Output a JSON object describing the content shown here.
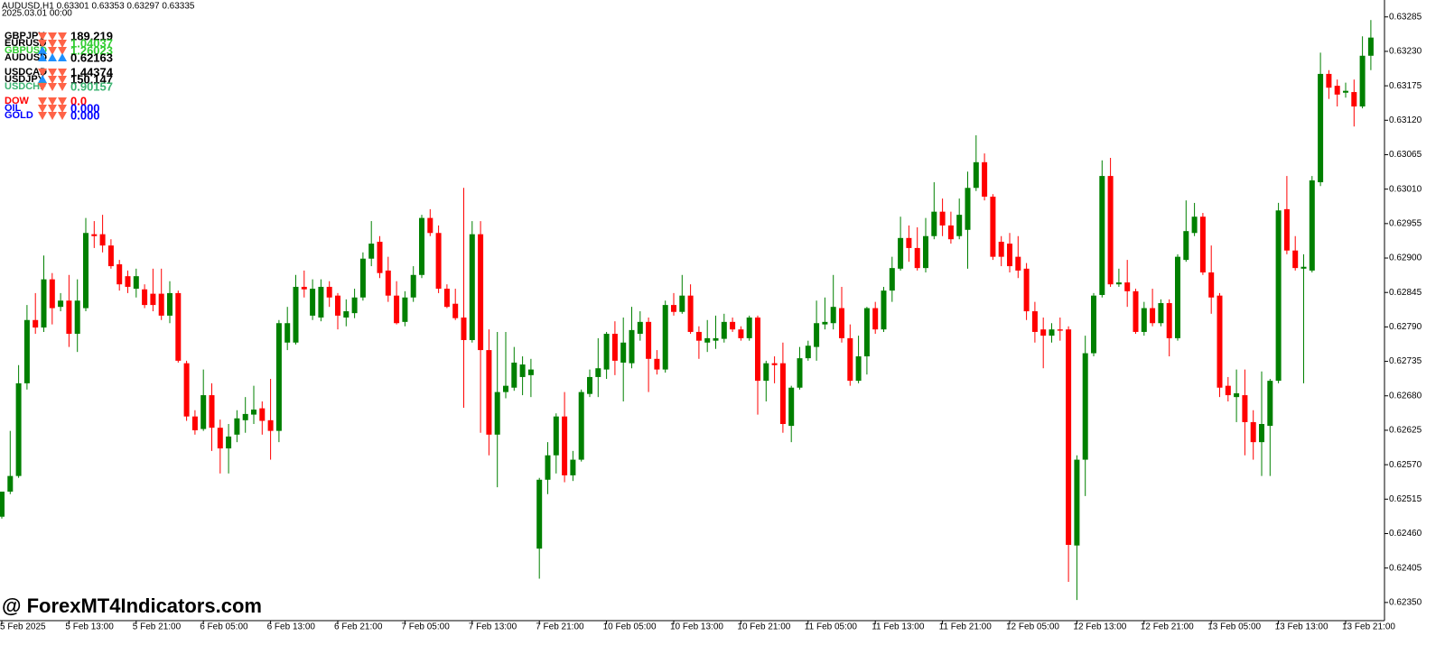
{
  "chart_data": {
    "type": "candlestick",
    "title": "AUDUSD,H1  0.63301 0.63353 0.63297 0.63335",
    "subtitle": "2025.03.01 00:00",
    "watermark": "@ ForexMT4Indicators.com",
    "up_color": "#008000",
    "down_color": "#ff0000",
    "grid": false,
    "ylim": [
      0.62321,
      0.63312
    ],
    "yticks": [
      0.63285,
      {
        "value": 0.6323,
        "label": "0.63230"
      },
      0.63175,
      {
        "value": 0.6312,
        "label": "0.63120"
      },
      0.63065,
      {
        "value": 0.6301,
        "label": "0.63010"
      },
      0.62955,
      {
        "value": 0.629,
        "label": "0.62900"
      },
      0.62845,
      {
        "value": 0.6279,
        "label": "0.62790"
      },
      0.62735,
      {
        "value": 0.6268,
        "label": "0.62680"
      },
      0.62625,
      {
        "value": 0.6257,
        "label": "0.62570"
      },
      0.62515,
      {
        "value": 0.6246,
        "label": "0.62460"
      },
      0.62405,
      {
        "value": 0.6235,
        "label": "0.62350"
      }
    ],
    "xticks": [
      {
        "value": 0,
        "label": "5 Feb 2025"
      },
      {
        "value": 8,
        "label": "5 Feb 13:00"
      },
      {
        "value": 16,
        "label": "5 Feb 21:00"
      },
      {
        "value": 24,
        "label": "6 Feb 05:00"
      },
      {
        "value": 32,
        "label": "6 Feb 13:00"
      },
      {
        "value": 40,
        "label": "6 Feb 21:00"
      },
      {
        "value": 48,
        "label": "7 Feb 05:00"
      },
      {
        "value": 56,
        "label": "7 Feb 13:00"
      },
      {
        "value": 64,
        "label": "7 Feb 21:00"
      },
      {
        "value": 72,
        "label": "10 Feb 05:00"
      },
      {
        "value": 80,
        "label": "10 Feb 13:00"
      },
      {
        "value": 88,
        "label": "10 Feb 21:00"
      },
      {
        "value": 96,
        "label": "11 Feb 05:00"
      },
      {
        "value": 104,
        "label": "11 Feb 13:00"
      },
      {
        "value": 112,
        "label": "11 Feb 21:00"
      },
      {
        "value": 120,
        "label": "12 Feb 05:00"
      },
      {
        "value": 128,
        "label": "12 Feb 13:00"
      },
      {
        "value": 136,
        "label": "12 Feb 21:00"
      },
      {
        "value": 144,
        "label": "13 Feb 05:00"
      },
      {
        "value": 152,
        "label": "13 Feb 13:00"
      },
      {
        "value": 160,
        "label": "13 Feb 21:00"
      }
    ],
    "ohlc": [
      [
        0.62487,
        0.62527,
        0.62484,
        0.62527
      ],
      [
        0.62527,
        0.62624,
        0.62523,
        0.62552
      ],
      [
        0.62552,
        0.62729,
        0.62549,
        0.627
      ],
      [
        0.627,
        0.62825,
        0.6269,
        0.62801
      ],
      [
        0.62801,
        0.62844,
        0.62779,
        0.62789
      ],
      [
        0.62789,
        0.62904,
        0.62782,
        0.62866
      ],
      [
        0.62866,
        0.62876,
        0.62794,
        0.6282
      ],
      [
        0.62822,
        0.62844,
        0.62815,
        0.62832
      ],
      [
        0.62832,
        0.62873,
        0.62758,
        0.62779
      ],
      [
        0.62779,
        0.62866,
        0.6275,
        0.62832
      ],
      [
        0.6282,
        0.62964,
        0.62815,
        0.6294
      ],
      [
        0.62938,
        0.62959,
        0.62916,
        0.62935
      ],
      [
        0.62938,
        0.62969,
        0.62909,
        0.6292
      ],
      [
        0.6292,
        0.6293,
        0.62883,
        0.62887
      ],
      [
        0.6289,
        0.62897,
        0.62848,
        0.62858
      ],
      [
        0.62871,
        0.6288,
        0.62844,
        0.62854
      ],
      [
        0.62851,
        0.62883,
        0.62837,
        0.62871
      ],
      [
        0.6285,
        0.62858,
        0.6282,
        0.62825
      ],
      [
        0.62843,
        0.62883,
        0.62815,
        0.62825
      ],
      [
        0.62843,
        0.62883,
        0.62801,
        0.62808
      ],
      [
        0.62808,
        0.62863,
        0.62796,
        0.62844
      ],
      [
        0.62844,
        0.62848,
        0.62733,
        0.62736
      ],
      [
        0.62732,
        0.62736,
        0.6264,
        0.62647
      ],
      [
        0.62647,
        0.62657,
        0.62618,
        0.62625
      ],
      [
        0.62627,
        0.62722,
        0.62624,
        0.62681
      ],
      [
        0.62681,
        0.627,
        0.62592,
        0.62629
      ],
      [
        0.62629,
        0.62642,
        0.62556,
        0.62596
      ],
      [
        0.62596,
        0.62635,
        0.62556,
        0.62615
      ],
      [
        0.62618,
        0.62657,
        0.62606,
        0.62644
      ],
      [
        0.62641,
        0.62678,
        0.62621,
        0.62651
      ],
      [
        0.6265,
        0.62696,
        0.62635,
        0.62658
      ],
      [
        0.6266,
        0.62671,
        0.62618,
        0.6264
      ],
      [
        0.62641,
        0.62707,
        0.62578,
        0.62624
      ],
      [
        0.62624,
        0.62801,
        0.62606,
        0.62796
      ],
      [
        0.62765,
        0.62822,
        0.62753,
        0.62796
      ],
      [
        0.62765,
        0.62873,
        0.62762,
        0.62854
      ],
      [
        0.62854,
        0.6288,
        0.62837,
        0.6285
      ],
      [
        0.62808,
        0.62866,
        0.62801,
        0.62851
      ],
      [
        0.62805,
        0.62866,
        0.62799,
        0.62854
      ],
      [
        0.62854,
        0.62863,
        0.62822,
        0.62837
      ],
      [
        0.6284,
        0.62844,
        0.62786,
        0.62808
      ],
      [
        0.62805,
        0.62834,
        0.62791,
        0.62815
      ],
      [
        0.62812,
        0.62851,
        0.62804,
        0.62837
      ],
      [
        0.62837,
        0.62909,
        0.62832,
        0.62899
      ],
      [
        0.62899,
        0.62959,
        0.62887,
        0.62923
      ],
      [
        0.62926,
        0.62935,
        0.62868,
        0.62876
      ],
      [
        0.6288,
        0.62902,
        0.6283,
        0.6284
      ],
      [
        0.6284,
        0.62863,
        0.62794,
        0.62796
      ],
      [
        0.62798,
        0.62847,
        0.62791,
        0.62837
      ],
      [
        0.62837,
        0.62887,
        0.6283,
        0.62873
      ],
      [
        0.62873,
        0.62969,
        0.62868,
        0.62964
      ],
      [
        0.62964,
        0.62978,
        0.62935,
        0.6294
      ],
      [
        0.6294,
        0.62952,
        0.62844,
        0.62851
      ],
      [
        0.62851,
        0.62858,
        0.6282,
        0.62822
      ],
      [
        0.62827,
        0.62851,
        0.62801,
        0.62804
      ],
      [
        0.62805,
        0.63012,
        0.62661,
        0.62769
      ],
      [
        0.62769,
        0.62959,
        0.62765,
        0.62938
      ],
      [
        0.62938,
        0.62959,
        0.62621,
        0.62753
      ],
      [
        0.62753,
        0.62786,
        0.62585,
        0.62618
      ],
      [
        0.62618,
        0.62782,
        0.62534,
        0.62686
      ],
      [
        0.62686,
        0.62782,
        0.62676,
        0.62696
      ],
      [
        0.62693,
        0.62758,
        0.62688,
        0.62733
      ],
      [
        0.6271,
        0.62743,
        0.62681,
        0.6273
      ],
      [
        0.62713,
        0.62739,
        0.62678,
        0.62722
      ],
      [
        0.62436,
        0.62549,
        0.62388,
        0.62546
      ],
      [
        0.62546,
        0.62606,
        0.62523,
        0.62585
      ],
      [
        0.62585,
        0.62652,
        0.62556,
        0.62647
      ],
      [
        0.62647,
        0.62686,
        0.62542,
        0.62553
      ],
      [
        0.62553,
        0.62592,
        0.62544,
        0.62578
      ],
      [
        0.62578,
        0.6269,
        0.62575,
        0.62686
      ],
      [
        0.62683,
        0.62722,
        0.62678,
        0.6271
      ],
      [
        0.6271,
        0.62772,
        0.62678,
        0.62724
      ],
      [
        0.62722,
        0.62782,
        0.62707,
        0.62779
      ],
      [
        0.62779,
        0.62799,
        0.62713,
        0.62736
      ],
      [
        0.62733,
        0.62805,
        0.62671,
        0.62765
      ],
      [
        0.62732,
        0.62822,
        0.62724,
        0.62785
      ],
      [
        0.62779,
        0.62815,
        0.62768,
        0.62798
      ],
      [
        0.62798,
        0.62805,
        0.62686,
        0.62739
      ],
      [
        0.62739,
        0.62753,
        0.62714,
        0.62722
      ],
      [
        0.62722,
        0.62832,
        0.62717,
        0.62825
      ],
      [
        0.62825,
        0.62844,
        0.62808,
        0.62814
      ],
      [
        0.62814,
        0.62873,
        0.62811,
        0.6284
      ],
      [
        0.6284,
        0.62858,
        0.62779,
        0.62782
      ],
      [
        0.62782,
        0.62791,
        0.62739,
        0.62768
      ],
      [
        0.62765,
        0.62801,
        0.6275,
        0.62772
      ],
      [
        0.62768,
        0.62808,
        0.62755,
        0.62772
      ],
      [
        0.62771,
        0.62811,
        0.62765,
        0.62798
      ],
      [
        0.62798,
        0.62805,
        0.62782,
        0.62786
      ],
      [
        0.62786,
        0.62791,
        0.62768,
        0.62772
      ],
      [
        0.62772,
        0.62808,
        0.62768,
        0.62805
      ],
      [
        0.62805,
        0.62808,
        0.6265,
        0.62704
      ],
      [
        0.62704,
        0.62736,
        0.62671,
        0.62732
      ],
      [
        0.62732,
        0.62743,
        0.627,
        0.62729
      ],
      [
        0.62732,
        0.62765,
        0.62621,
        0.62635
      ],
      [
        0.62632,
        0.62696,
        0.62606,
        0.62693
      ],
      [
        0.62693,
        0.62758,
        0.6269,
        0.6274
      ],
      [
        0.6274,
        0.62768,
        0.62736,
        0.6276
      ],
      [
        0.62758,
        0.62832,
        0.62736,
        0.62796
      ],
      [
        0.62794,
        0.62837,
        0.62786,
        0.62798
      ],
      [
        0.62796,
        0.62873,
        0.62786,
        0.62822
      ],
      [
        0.6282,
        0.62854,
        0.62765,
        0.62772
      ],
      [
        0.62772,
        0.62794,
        0.62696,
        0.62704
      ],
      [
        0.62704,
        0.62776,
        0.627,
        0.62743
      ],
      [
        0.62743,
        0.62822,
        0.62714,
        0.6282
      ],
      [
        0.6282,
        0.6283,
        0.62779,
        0.62786
      ],
      [
        0.62786,
        0.62854,
        0.62782,
        0.62848
      ],
      [
        0.62848,
        0.62902,
        0.6283,
        0.62884
      ],
      [
        0.62883,
        0.62966,
        0.6288,
        0.62932
      ],
      [
        0.62932,
        0.62952,
        0.62894,
        0.62916
      ],
      [
        0.62916,
        0.62949,
        0.6288,
        0.62884
      ],
      [
        0.62884,
        0.62964,
        0.62877,
        0.62935
      ],
      [
        0.62935,
        0.63021,
        0.6293,
        0.62974
      ],
      [
        0.62974,
        0.62995,
        0.62935,
        0.62952
      ],
      [
        0.62952,
        0.62974,
        0.62923,
        0.6293
      ],
      [
        0.62935,
        0.62995,
        0.6293,
        0.62969
      ],
      [
        0.62945,
        0.63038,
        0.62883,
        0.63012
      ],
      [
        0.63012,
        0.63096,
        0.63007,
        0.63053
      ],
      [
        0.63053,
        0.63067,
        0.62992,
        0.62998
      ],
      [
        0.62998,
        0.63002,
        0.62897,
        0.62902
      ],
      [
        0.62926,
        0.62935,
        0.62887,
        0.62902
      ],
      [
        0.62923,
        0.6294,
        0.62877,
        0.62887
      ],
      [
        0.62902,
        0.62935,
        0.62868,
        0.6288
      ],
      [
        0.62883,
        0.62892,
        0.62801,
        0.62815
      ],
      [
        0.62815,
        0.6283,
        0.62765,
        0.62782
      ],
      [
        0.62786,
        0.62805,
        0.62724,
        0.62776
      ],
      [
        0.62776,
        0.62796,
        0.62765,
        0.62786
      ],
      [
        0.62786,
        0.62805,
        0.62768,
        0.62784
      ],
      [
        0.62786,
        0.62791,
        0.62383,
        0.62442
      ],
      [
        0.62441,
        0.62585,
        0.62354,
        0.62578
      ],
      [
        0.62578,
        0.62776,
        0.6252,
        0.62748
      ],
      [
        0.62748,
        0.62844,
        0.62743,
        0.6284
      ],
      [
        0.62841,
        0.63056,
        0.62837,
        0.63031
      ],
      [
        0.63031,
        0.6306,
        0.62854,
        0.62858
      ],
      [
        0.62858,
        0.62883,
        0.62854,
        0.62861
      ],
      [
        0.62861,
        0.62897,
        0.62822,
        0.62847
      ],
      [
        0.62847,
        0.62851,
        0.62779,
        0.62782
      ],
      [
        0.62782,
        0.6283,
        0.62776,
        0.6282
      ],
      [
        0.6282,
        0.62851,
        0.62791,
        0.62796
      ],
      [
        0.62796,
        0.62834,
        0.62791,
        0.62828
      ],
      [
        0.62828,
        0.62834,
        0.62743,
        0.62772
      ],
      [
        0.62772,
        0.62906,
        0.62768,
        0.62902
      ],
      [
        0.62897,
        0.62992,
        0.62894,
        0.62943
      ],
      [
        0.6294,
        0.62988,
        0.62935,
        0.62966
      ],
      [
        0.62966,
        0.62972,
        0.62873,
        0.62877
      ],
      [
        0.62877,
        0.6292,
        0.62811,
        0.62837
      ],
      [
        0.6284,
        0.62844,
        0.62678,
        0.62693
      ],
      [
        0.62696,
        0.6271,
        0.62671,
        0.62681
      ],
      [
        0.62678,
        0.62722,
        0.62638,
        0.62684
      ],
      [
        0.62681,
        0.62722,
        0.62585,
        0.62638
      ],
      [
        0.62638,
        0.62657,
        0.62578,
        0.62606
      ],
      [
        0.62606,
        0.62719,
        0.62552,
        0.62635
      ],
      [
        0.62632,
        0.62707,
        0.62552,
        0.62704
      ],
      [
        0.62704,
        0.62988,
        0.627,
        0.62976
      ],
      [
        0.62978,
        0.63031,
        0.62906,
        0.62912
      ],
      [
        0.62912,
        0.62935,
        0.6288,
        0.62884
      ],
      [
        0.62883,
        0.62906,
        0.627,
        0.62886
      ],
      [
        0.6288,
        0.63031,
        0.62877,
        0.63024
      ],
      [
        0.63021,
        0.63228,
        0.63015,
        0.63194
      ],
      [
        0.63194,
        0.632,
        0.63154,
        0.63172
      ],
      [
        0.63175,
        0.63185,
        0.63142,
        0.63161
      ],
      [
        0.63164,
        0.6318,
        0.63156,
        0.63167
      ],
      [
        0.63165,
        0.63185,
        0.6311,
        0.63142
      ],
      [
        0.63142,
        0.63254,
        0.63139,
        0.63223
      ],
      [
        0.63223,
        0.6328,
        0.632,
        0.63252
      ]
    ]
  },
  "indicator_panel": {
    "up_color": "#1e90ff",
    "down_color": "#ff6347",
    "groups": [
      [
        {
          "label": "GBPJPY",
          "label_color": "#000000",
          "arrows": [
            "down",
            "down",
            "down"
          ],
          "value": "189.219",
          "value_color": "#000000"
        },
        {
          "label": "EURUSD",
          "label_color": "#000000",
          "arrows": [
            "down",
            "down",
            "down"
          ],
          "value": "1.04037",
          "value_color": "#32cd32"
        },
        {
          "label": "GBPUSD",
          "label_color": "#32cd32",
          "arrows": [
            "up",
            "down",
            "down"
          ],
          "value": "1.26023",
          "value_color": "#32cd32"
        },
        {
          "label": "AUDUSD",
          "label_color": "#000000",
          "arrows": [
            "up",
            "up",
            "up"
          ],
          "value": "0.62163",
          "value_color": "#000000"
        }
      ],
      [
        {
          "label": "USDCAD",
          "label_color": "#000000",
          "arrows": [
            "down",
            "down",
            "down"
          ],
          "value": "1.44374",
          "value_color": "#000000"
        },
        {
          "label": "USDJPY",
          "label_color": "#000000",
          "arrows": [
            "up",
            "down",
            "down"
          ],
          "value": "150.147",
          "value_color": "#000000"
        },
        {
          "label": "USDCHF",
          "label_color": "#3cb371",
          "arrows": [
            "down",
            "down",
            "down"
          ],
          "value": "0.90157",
          "value_color": "#3cb371"
        }
      ],
      [
        {
          "label": "DOW",
          "label_color": "#ff0000",
          "arrows": [
            "down",
            "down",
            "down"
          ],
          "value": "0.0",
          "value_color": "#ff0000"
        },
        {
          "label": "OIL",
          "label_color": "#0000ff",
          "arrows": [
            "down",
            "down",
            "down"
          ],
          "value": "0.000",
          "value_color": "#0000ff"
        },
        {
          "label": "GOLD",
          "label_color": "#0000ff",
          "arrows": [
            "down",
            "down",
            "down"
          ],
          "value": "0.000",
          "value_color": "#0000ff"
        }
      ]
    ]
  }
}
